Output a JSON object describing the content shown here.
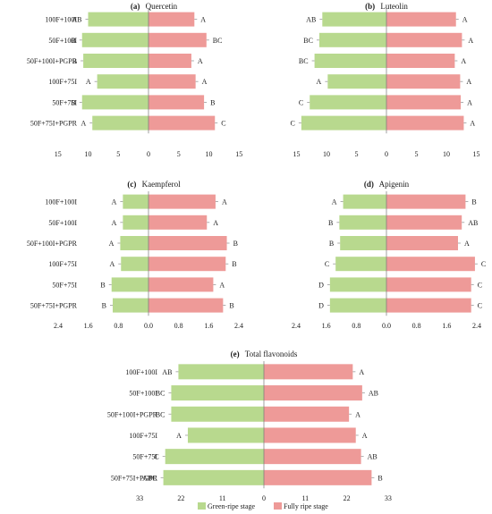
{
  "chart_data": [
    {
      "type": "bar",
      "panel_label": "(a)",
      "title": "Quercetin",
      "categories": [
        "100F+100I",
        "50F+100I",
        "50F+100I+PGPR",
        "100F+75I",
        "50F+75I",
        "50F+75I+PGPR"
      ],
      "xlim": [
        -15,
        15
      ],
      "ticks": [
        15,
        10,
        5,
        0,
        5,
        10,
        15
      ],
      "series": [
        {
          "name": "Green-ripe stage",
          "values": [
            10.0,
            11.0,
            10.8,
            8.5,
            11.0,
            9.3
          ],
          "significance": [
            "AB",
            "B",
            "B",
            "A",
            "B",
            "A"
          ]
        },
        {
          "name": "Fully ripe stage",
          "values": [
            7.6,
            9.6,
            7.1,
            7.8,
            9.2,
            11.0
          ],
          "significance": [
            "A",
            "BC",
            "A",
            "A",
            "B",
            "C"
          ]
        }
      ]
    },
    {
      "type": "bar",
      "panel_label": "(b)",
      "title": "Luteolin",
      "categories": [
        "100F+100I",
        "50F+100I",
        "50F+100I+PGPR",
        "100F+75I",
        "50F+75I",
        "50F+75I+PGPR"
      ],
      "xlim": [
        -15,
        15
      ],
      "ticks": [
        15,
        10,
        5,
        0,
        5,
        10,
        15
      ],
      "series": [
        {
          "name": "Green-ripe stage",
          "values": [
            10.7,
            11.2,
            12.0,
            9.8,
            12.8,
            14.2
          ],
          "significance": [
            "AB",
            "BC",
            "BC",
            "A",
            "C",
            "C"
          ]
        },
        {
          "name": "Fully ripe stage",
          "values": [
            11.6,
            12.6,
            11.4,
            12.3,
            12.4,
            12.9
          ],
          "significance": [
            "A",
            "A",
            "A",
            "A",
            "A",
            "A"
          ]
        }
      ]
    },
    {
      "type": "bar",
      "panel_label": "(c)",
      "title": "Kaempferol",
      "categories": [
        "100F+100I",
        "50F+100I",
        "50F+100I+PGPR",
        "100F+75I",
        "50F+75I",
        "50F+75I+PGPR"
      ],
      "xlim": [
        -2.4,
        2.4
      ],
      "ticks": [
        2.4,
        1.6,
        0.8,
        0.0,
        0.8,
        1.6,
        2.4
      ],
      "series": [
        {
          "name": "Green-ripe stage",
          "values": [
            0.68,
            0.68,
            0.75,
            0.73,
            0.98,
            0.95
          ],
          "significance": [
            "A",
            "A",
            "A",
            "A",
            "B",
            "B"
          ]
        },
        {
          "name": "Fully ripe stage",
          "values": [
            1.78,
            1.55,
            2.08,
            2.05,
            1.72,
            1.98
          ],
          "significance": [
            "A",
            "A",
            "B",
            "B",
            "A",
            "B"
          ]
        }
      ]
    },
    {
      "type": "bar",
      "panel_label": "(d)",
      "title": "Apigenin",
      "categories": [
        "100F+100I",
        "50F+100I",
        "50F+100I+PGPR",
        "100F+75I",
        "50F+75I",
        "50F+75I+PGPR"
      ],
      "xlim": [
        -2.4,
        2.4
      ],
      "ticks": [
        2.4,
        1.6,
        0.8,
        0.0,
        0.8,
        1.6,
        2.4
      ],
      "series": [
        {
          "name": "Green-ripe stage",
          "values": [
            1.15,
            1.25,
            1.23,
            1.35,
            1.5,
            1.5
          ],
          "significance": [
            "A",
            "B",
            "B",
            "C",
            "D",
            "D"
          ]
        },
        {
          "name": "Fully ripe stage",
          "values": [
            2.1,
            2.0,
            1.9,
            2.35,
            2.25,
            2.25
          ],
          "significance": [
            "B",
            "AB",
            "A",
            "C",
            "C",
            "C"
          ]
        }
      ]
    },
    {
      "type": "bar",
      "panel_label": "(e)",
      "title": "Total flavonoids",
      "categories": [
        "100F+100I",
        "50F+100I",
        "50F+100I+PGPR",
        "100F+75I",
        "50F+75I",
        "50F+75I+PGPR"
      ],
      "xlim": [
        -33,
        33
      ],
      "ticks": [
        33,
        22,
        11,
        0,
        11,
        22,
        33
      ],
      "series": [
        {
          "name": "Green-ripe stage",
          "values": [
            22.7,
            24.6,
            24.6,
            20.2,
            26.2,
            26.7
          ],
          "significance": [
            "AB",
            "BC",
            "BC",
            "A",
            "C",
            "ABC"
          ]
        },
        {
          "name": "Fully ripe stage",
          "values": [
            23.6,
            26.1,
            22.6,
            24.4,
            25.8,
            28.6
          ],
          "significance": [
            "A",
            "AB",
            "A",
            "A",
            "AB",
            "B"
          ]
        }
      ]
    }
  ],
  "legend": {
    "items": [
      {
        "label": "Green-ripe stage",
        "color": "#b8d98e"
      },
      {
        "label": "Fully ripe stage",
        "color": "#ee9a98"
      }
    ]
  },
  "colors": {
    "green": "#b8d98e",
    "red": "#ee9a98",
    "axis": "#777777",
    "error": "#9a9a9a"
  }
}
